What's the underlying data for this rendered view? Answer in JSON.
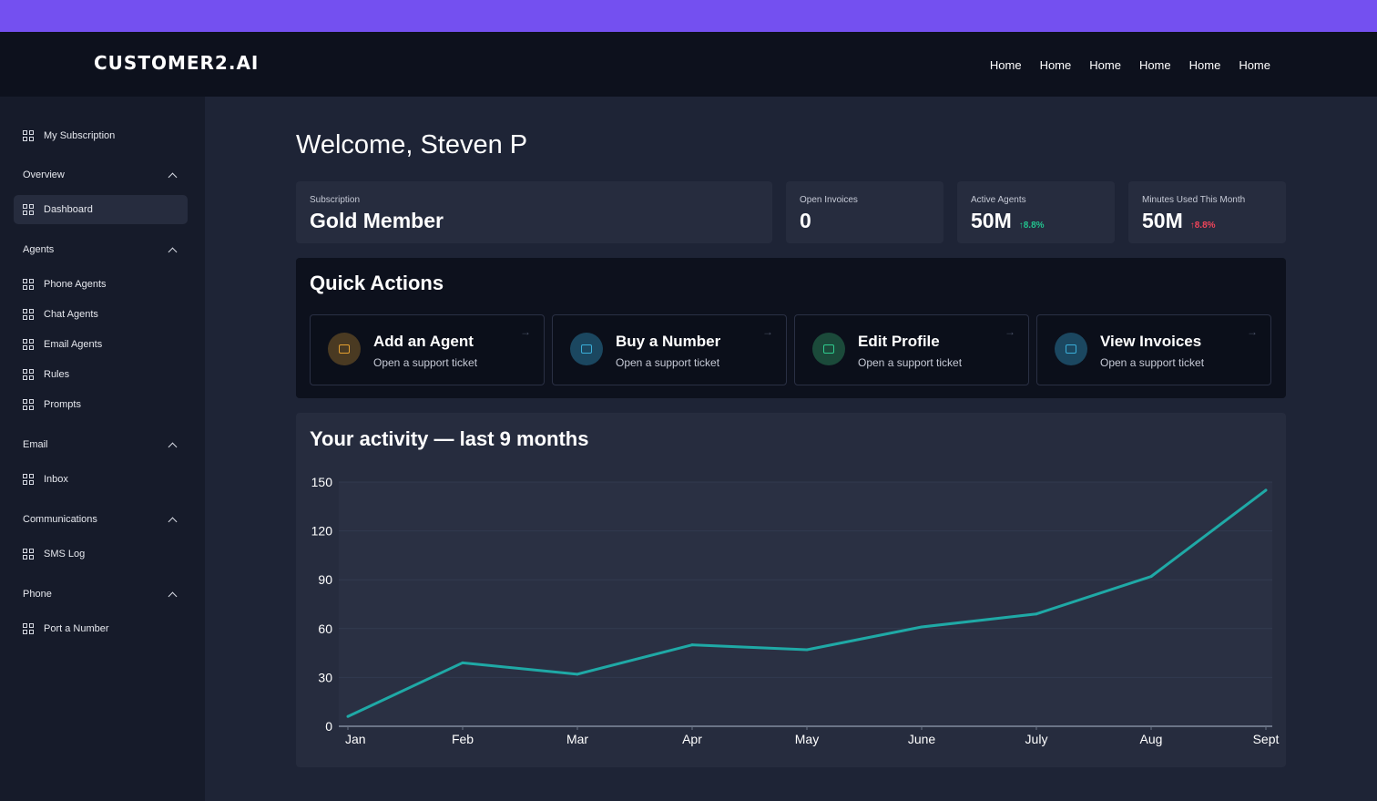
{
  "header": {
    "logo": "CUSTOMER2.AI",
    "nav": [
      "Home",
      "Home",
      "Home",
      "Home",
      "Home",
      "Home"
    ]
  },
  "sidebar": {
    "top_item": "My Subscription",
    "sections": [
      {
        "title": "Overview",
        "items": [
          "Dashboard"
        ]
      },
      {
        "title": "Agents",
        "items": [
          "Phone Agents",
          "Chat Agents",
          "Email Agents",
          "Rules",
          "Prompts"
        ]
      },
      {
        "title": "Email",
        "items": [
          "Inbox"
        ]
      },
      {
        "title": "Communications",
        "items": [
          "SMS Log"
        ]
      },
      {
        "title": "Phone",
        "items": [
          "Port a Number"
        ]
      }
    ],
    "active_item": "Dashboard"
  },
  "welcome": "Welcome, Steven P",
  "stats": [
    {
      "label": "Subscription",
      "value": "Gold Member",
      "delta": ""
    },
    {
      "label": "Open Invoices",
      "value": "0",
      "delta": ""
    },
    {
      "label": "Active Agents",
      "value": "50M",
      "delta": "↑8.8%",
      "delta_color": "#22c38e"
    },
    {
      "label": "Minutes Used This Month",
      "value": "50M",
      "delta": "↑8.8%",
      "delta_color": "#f0445a"
    }
  ],
  "quick_actions": {
    "title": "Quick Actions",
    "items": [
      {
        "name": "Add an Agent",
        "sub": "Open a support ticket",
        "icon": "support-ticket-icon",
        "color": "#e5a030",
        "bg": "#4a3a22"
      },
      {
        "name": "Buy a Number",
        "sub": "Open a support ticket",
        "icon": "support-ticket-icon",
        "color": "#3aaed8",
        "bg": "#1b4760"
      },
      {
        "name": "Edit Profile",
        "sub": "Open a support ticket",
        "icon": "support-ticket-icon",
        "color": "#2fcb8e",
        "bg": "#1b4a3a"
      },
      {
        "name": "View Invoices",
        "sub": "Open a support ticket",
        "icon": "support-ticket-icon",
        "color": "#3aaed8",
        "bg": "#1b4760"
      }
    ]
  },
  "chart_data": {
    "type": "line",
    "title": "Your activity — last 9 months",
    "x": [
      "Jan",
      "Feb",
      "Mar",
      "Apr",
      "May",
      "June",
      "July",
      "Aug",
      "Sept"
    ],
    "series": [
      {
        "values": [
          6,
          39,
          32,
          50,
          47,
          61,
          69,
          92,
          145
        ]
      }
    ],
    "yticks": [
      0,
      30,
      60,
      90,
      120,
      150
    ],
    "ylim": [
      0,
      150
    ],
    "grid": true,
    "line_color": "#1fa9a6"
  }
}
